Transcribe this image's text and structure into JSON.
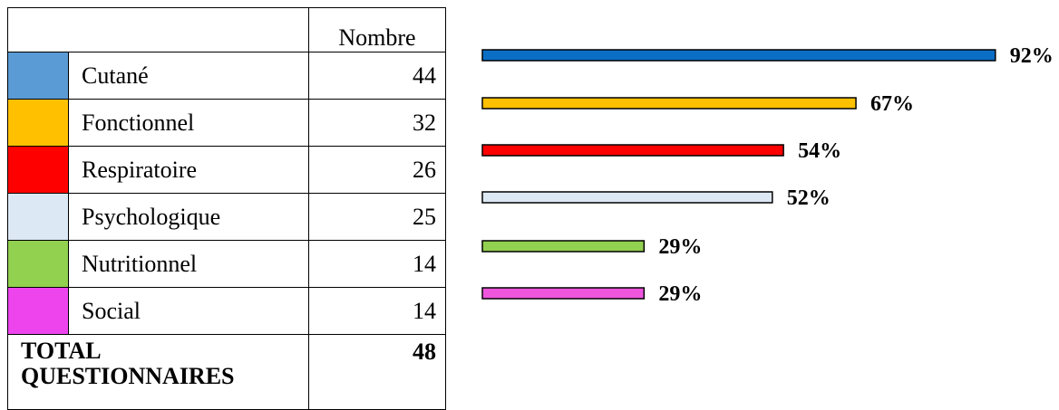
{
  "table": {
    "header_count": "Nombre",
    "total_label": "TOTAL QUESTIONNAIRES",
    "total_value": "48"
  },
  "chart_data": {
    "type": "bar",
    "orientation": "horizontal",
    "categories": [
      "Cutané",
      "Fonctionnel",
      "Respiratoire",
      "Psychologique",
      "Nutritionnel",
      "Social"
    ],
    "counts": [
      "44",
      "32",
      "26",
      "25",
      "14",
      "14"
    ],
    "values": [
      92,
      67,
      54,
      52,
      29,
      29
    ],
    "labels": [
      "92%",
      "67%",
      "54%",
      "52%",
      "29%",
      "29%"
    ],
    "colors": [
      "#5b9bd5",
      "#ffc000",
      "#ff0000",
      "#dde8f5",
      "#92d050",
      "#ee44ee"
    ],
    "bar_colors": [
      "#0b6ec5",
      "#ffc000",
      "#ff0000",
      "#dde8f5",
      "#92d050",
      "#ee55dd"
    ],
    "unit": "%",
    "xlim": [
      0,
      100
    ]
  }
}
